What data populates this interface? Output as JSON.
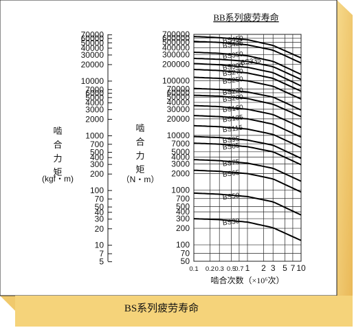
{
  "chart_data": {
    "type": "line",
    "title": "BB系列疲劳寿命",
    "xlabel": "啮合次数（×10⁶次）",
    "x_ticks": [
      0.1,
      0.2,
      0.3,
      0.5,
      0.7,
      1,
      2,
      3,
      5,
      7,
      10
    ],
    "x_tick_labels": [
      "0.1",
      "0.2",
      "0.3",
      "0.5",
      "0.7",
      "1",
      "2",
      "3",
      "5",
      "7",
      "10"
    ],
    "xlim": [
      0.1,
      10
    ],
    "x_scale": "log",
    "y_scale": "log",
    "ylim": [
      50,
      700000
    ],
    "ylabel_nm": "啮合力矩",
    "ylabel_nm_unit": "（N・m）",
    "y_ticks_nm": [
      "700000",
      "600000",
      "500000",
      "400000",
      "300000",
      "200000",
      "100000",
      "70000",
      "60000",
      "50000",
      "40000",
      "30000",
      "20000",
      "10000",
      "7000",
      "5000",
      "4000",
      "3000",
      "2000",
      "1000",
      "700",
      "500",
      "400",
      "300",
      "200",
      "100",
      "70",
      "50"
    ],
    "ylabel_kgf": "啮合力矩",
    "ylabel_kgf_unit": "(kgf・m)",
    "y_ticks_kgf": [
      "70000",
      "60000",
      "50000",
      "40000",
      "30000",
      "20000",
      "10000",
      "7000",
      "6000",
      "5000",
      "4000",
      "3000",
      "2000",
      "1000",
      "700",
      "500",
      "400",
      "300",
      "200",
      "100",
      "70",
      "50",
      "40",
      "30",
      "20",
      "10",
      "7",
      "5"
    ],
    "grid": true,
    "series": [
      {
        "name": "BS450",
        "points": [
          [
            0.1,
            640000
          ],
          [
            0.3,
            610000
          ],
          [
            1,
            560000
          ],
          [
            3,
            440000
          ],
          [
            10,
            260000
          ]
        ]
      },
      {
        "name": "BS425",
        "points": [
          [
            0.1,
            520000
          ],
          [
            0.3,
            500000
          ],
          [
            1,
            450000
          ],
          [
            3,
            360000
          ],
          [
            10,
            210000
          ]
        ]
      },
      {
        "name": "BS350",
        "points": [
          [
            0.1,
            330000
          ],
          [
            0.3,
            315000
          ],
          [
            1,
            285000
          ],
          [
            3,
            225000
          ],
          [
            10,
            130000
          ]
        ]
      },
      {
        "name": "BS300",
        "points": [
          [
            0.1,
            205000
          ],
          [
            0.3,
            195000
          ],
          [
            1,
            175000
          ],
          [
            3,
            140000
          ],
          [
            10,
            80000
          ]
        ]
      },
      {
        "name": "BS335",
        "points": [
          [
            0.1,
            255000
          ],
          [
            0.3,
            245000
          ],
          [
            1,
            225000
          ],
          [
            3,
            180000
          ],
          [
            10,
            105000
          ]
        ]
      },
      {
        "name": "BS270",
        "points": [
          [
            0.1,
            160000
          ],
          [
            0.3,
            153000
          ],
          [
            1,
            138000
          ],
          [
            3,
            110000
          ],
          [
            10,
            64000
          ]
        ]
      },
      {
        "name": "BS250",
        "points": [
          [
            0.1,
            115000
          ],
          [
            0.3,
            110000
          ],
          [
            1,
            99000
          ],
          [
            3,
            79000
          ],
          [
            10,
            46000
          ]
        ]
      },
      {
        "name": "BS220",
        "points": [
          [
            0.1,
            72000
          ],
          [
            0.3,
            69000
          ],
          [
            1,
            62000
          ],
          [
            3,
            50000
          ],
          [
            10,
            29000
          ]
        ]
      },
      {
        "name": "BS200",
        "points": [
          [
            0.1,
            54000
          ],
          [
            0.3,
            52000
          ],
          [
            1,
            47000
          ],
          [
            3,
            37000
          ],
          [
            10,
            22000
          ]
        ]
      },
      {
        "name": "BS160",
        "points": [
          [
            0.1,
            35000
          ],
          [
            0.3,
            33500
          ],
          [
            1,
            30000
          ],
          [
            3,
            24000
          ],
          [
            10,
            14000
          ]
        ]
      },
      {
        "name": "BS135",
        "points": [
          [
            0.1,
            23000
          ],
          [
            0.3,
            22000
          ],
          [
            1,
            20000
          ],
          [
            3,
            16000
          ],
          [
            10,
            9300
          ]
        ]
      },
      {
        "name": "BS115",
        "points": [
          [
            0.1,
            15000
          ],
          [
            0.3,
            14400
          ],
          [
            1,
            13000
          ],
          [
            3,
            10400
          ],
          [
            10,
            6000
          ]
        ]
      },
      {
        "name": "BS95",
        "points": [
          [
            0.1,
            9500
          ],
          [
            0.3,
            9100
          ],
          [
            1,
            8200
          ],
          [
            3,
            6600
          ],
          [
            10,
            3800
          ]
        ]
      },
      {
        "name": "BS85",
        "points": [
          [
            0.1,
            7200
          ],
          [
            0.3,
            6900
          ],
          [
            1,
            6200
          ],
          [
            3,
            5000
          ],
          [
            10,
            2900
          ]
        ]
      },
      {
        "name": "BS75",
        "points": [
          [
            0.1,
            3600
          ],
          [
            0.3,
            3450
          ],
          [
            1,
            3100
          ],
          [
            3,
            2500
          ],
          [
            10,
            1450
          ]
        ]
      },
      {
        "name": "BS65",
        "points": [
          [
            0.1,
            2300
          ],
          [
            0.3,
            2200
          ],
          [
            1,
            2000
          ],
          [
            3,
            1600
          ],
          [
            10,
            920
          ]
        ]
      },
      {
        "name": "BS50",
        "points": [
          [
            0.1,
            880
          ],
          [
            0.3,
            840
          ],
          [
            1,
            760
          ],
          [
            3,
            610
          ],
          [
            10,
            350
          ]
        ]
      },
      {
        "name": "BS30",
        "points": [
          [
            0.1,
            300
          ],
          [
            0.3,
            288
          ],
          [
            1,
            260
          ],
          [
            3,
            205
          ],
          [
            10,
            120
          ]
        ]
      }
    ]
  },
  "caption": "BS系列疲劳寿命"
}
